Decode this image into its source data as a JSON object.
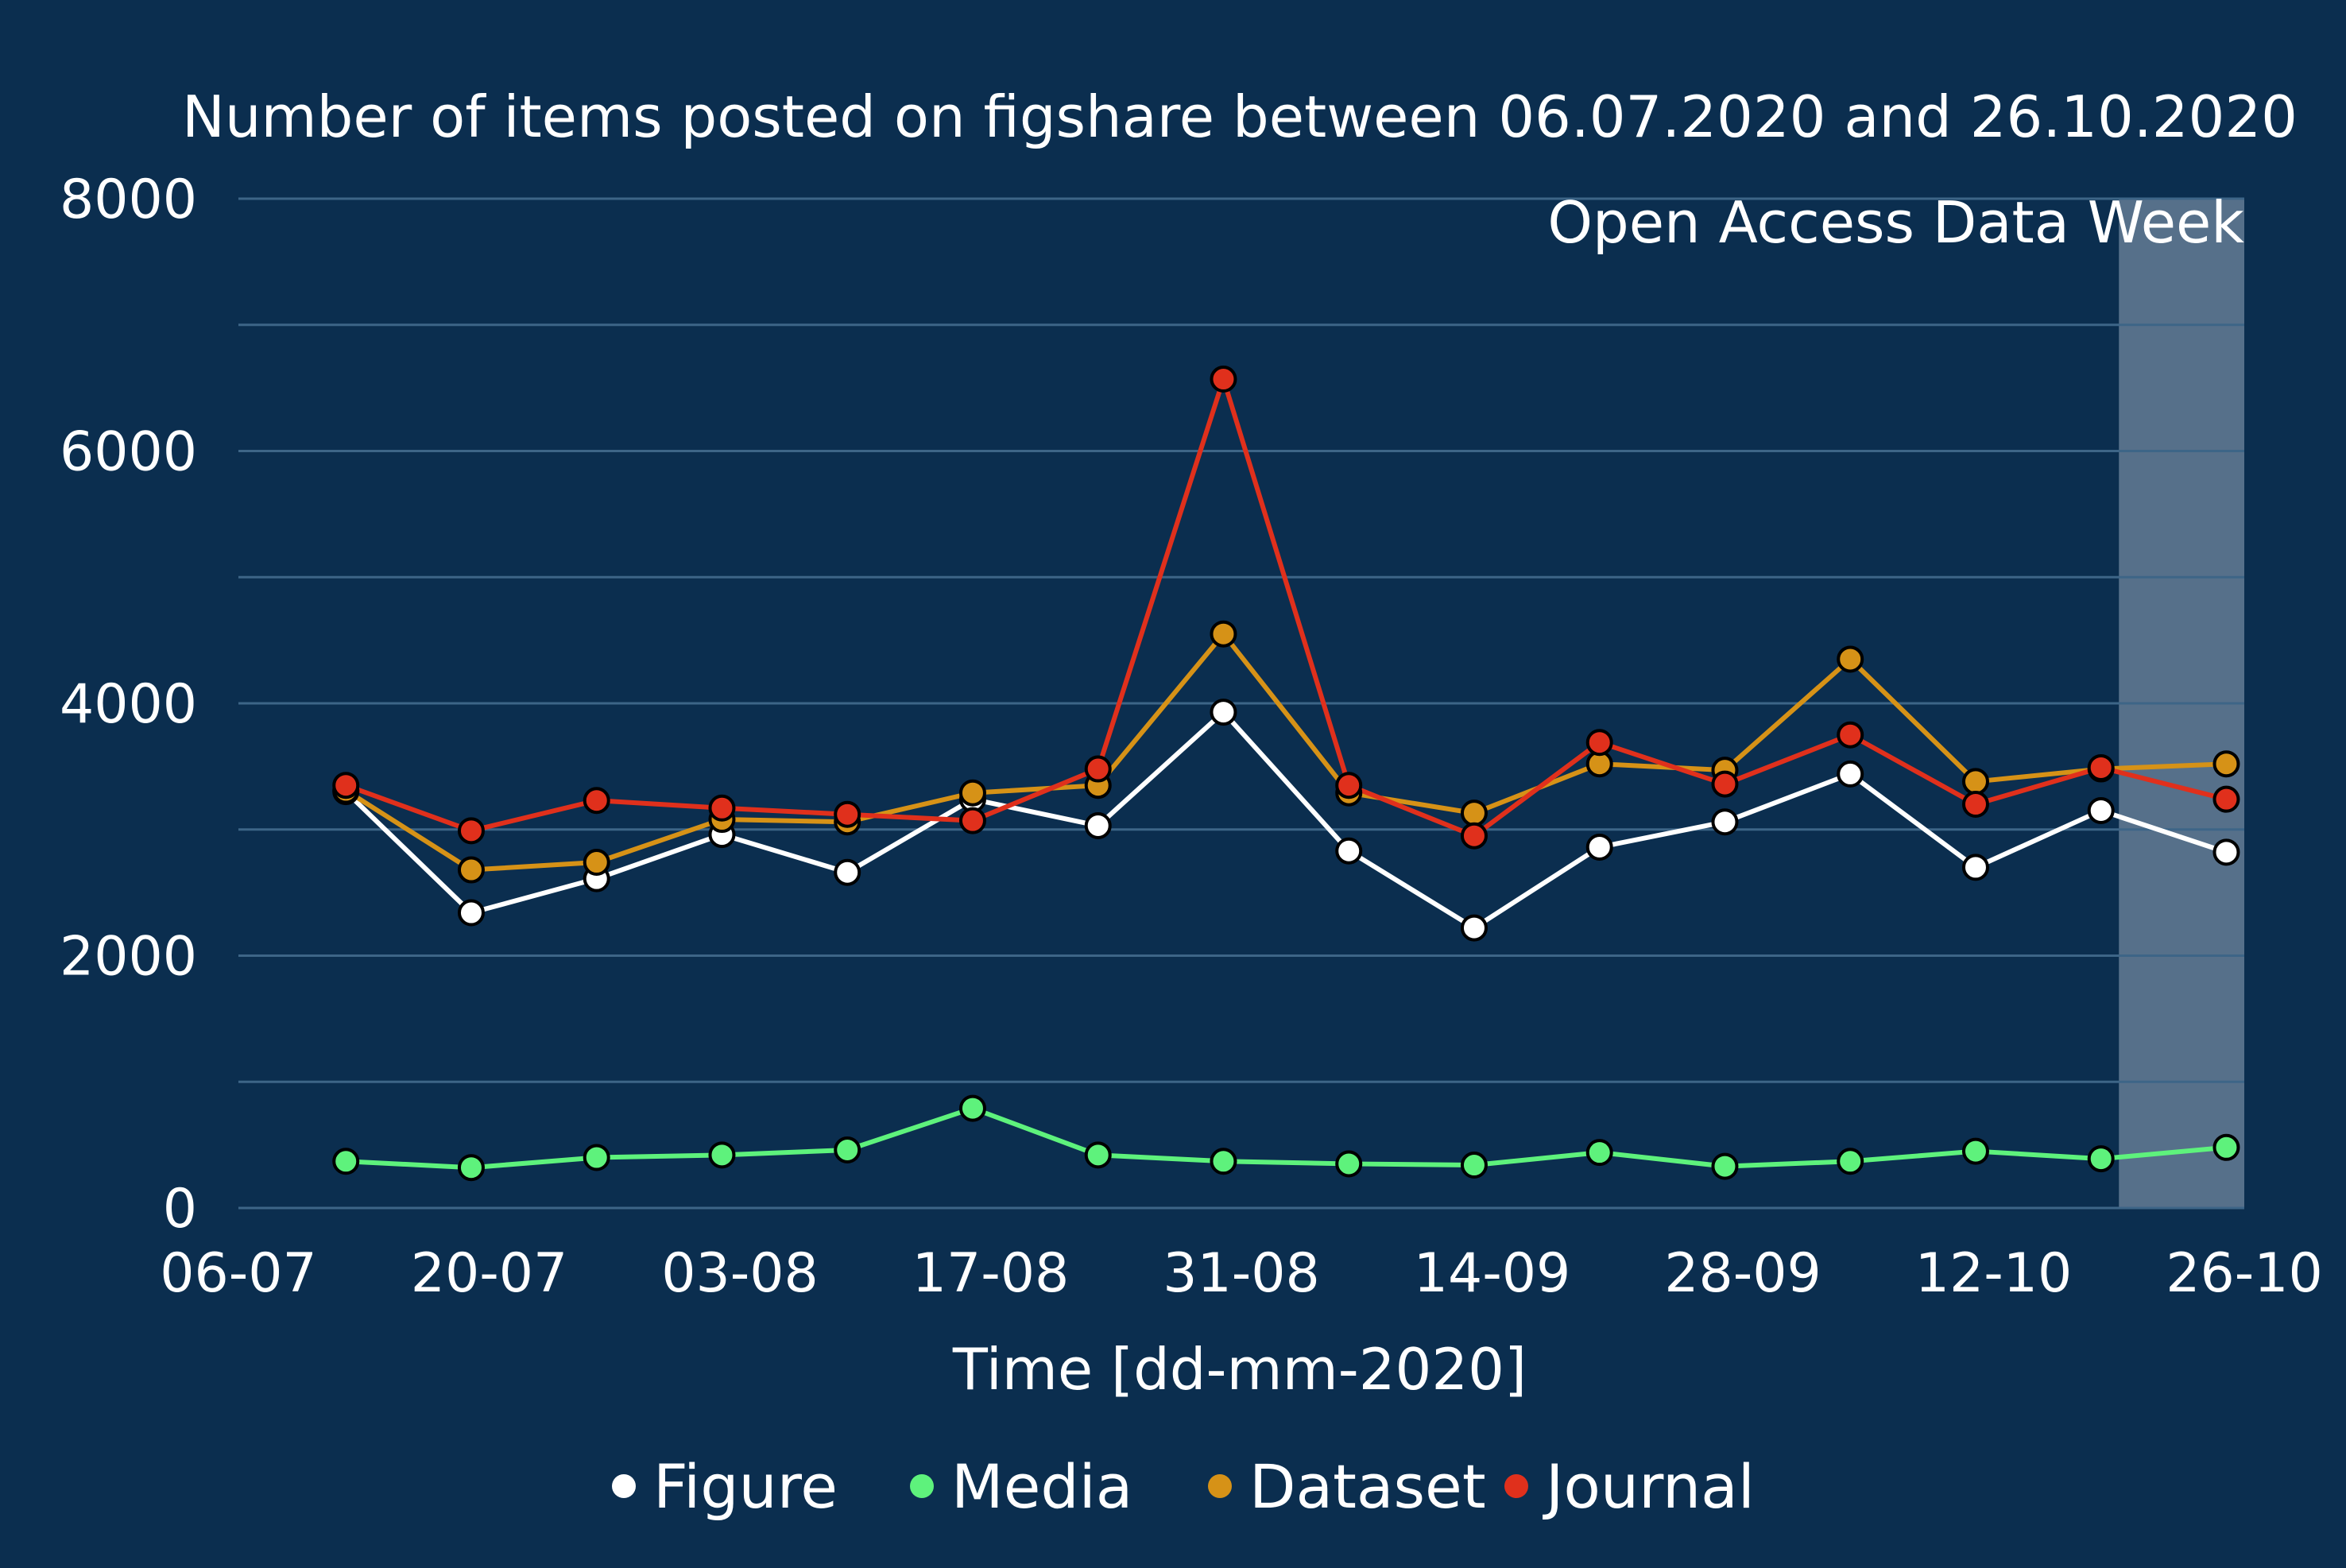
{
  "chart_data": {
    "type": "line",
    "title": "Number of items posted on figshare between 06.07.2020 and 26.10.2020",
    "xlabel": "Time [dd-mm-2020]",
    "ylabel": "",
    "ylim": [
      0,
      8000
    ],
    "y_ticks": [
      "0",
      "2000",
      "4000",
      "6000",
      "8000"
    ],
    "x_ticks": [
      "06-07",
      "20-07",
      "03-08",
      "17-08",
      "31-08",
      "14-09",
      "28-09",
      "12-10",
      "26-10"
    ],
    "x_range": [
      "2020-07-06",
      "2020-10-26"
    ],
    "grid": true,
    "x": [
      "2020-07-12",
      "2020-07-19",
      "2020-07-26",
      "2020-08-02",
      "2020-08-09",
      "2020-08-16",
      "2020-08-23",
      "2020-08-30",
      "2020-09-06",
      "2020-09-13",
      "2020-09-20",
      "2020-09-27",
      "2020-10-04",
      "2020-10-11",
      "2020-10-18",
      "2020-10-25"
    ],
    "highlight": {
      "label": "Open Access Data Week",
      "start": "2020-10-19",
      "end": "2020-10-26",
      "color": "#56708a"
    },
    "legend": {
      "placement": "bottom"
    },
    "series": [
      {
        "name": "Figure",
        "color": "#ffffff",
        "values": [
          3300,
          2340,
          2610,
          2960,
          2660,
          3240,
          3030,
          3930,
          2830,
          2220,
          2860,
          3060,
          3440,
          2700,
          3150,
          2820
        ]
      },
      {
        "name": "Media",
        "color": "#5ef27c",
        "values": [
          370,
          320,
          400,
          420,
          460,
          790,
          420,
          370,
          350,
          340,
          440,
          330,
          370,
          450,
          390,
          480
        ]
      },
      {
        "name": "Dataset",
        "color": "#d69217",
        "values": [
          3310,
          2680,
          2740,
          3080,
          3060,
          3290,
          3350,
          4550,
          3290,
          3130,
          3520,
          3470,
          4350,
          3380,
          3480,
          3520
        ]
      },
      {
        "name": "Journal",
        "color": "#e0301c",
        "values": [
          3350,
          2990,
          3230,
          3170,
          3120,
          3070,
          3480,
          6570,
          3350,
          2950,
          3690,
          3360,
          3750,
          3200,
          3490,
          3240
        ]
      }
    ]
  }
}
